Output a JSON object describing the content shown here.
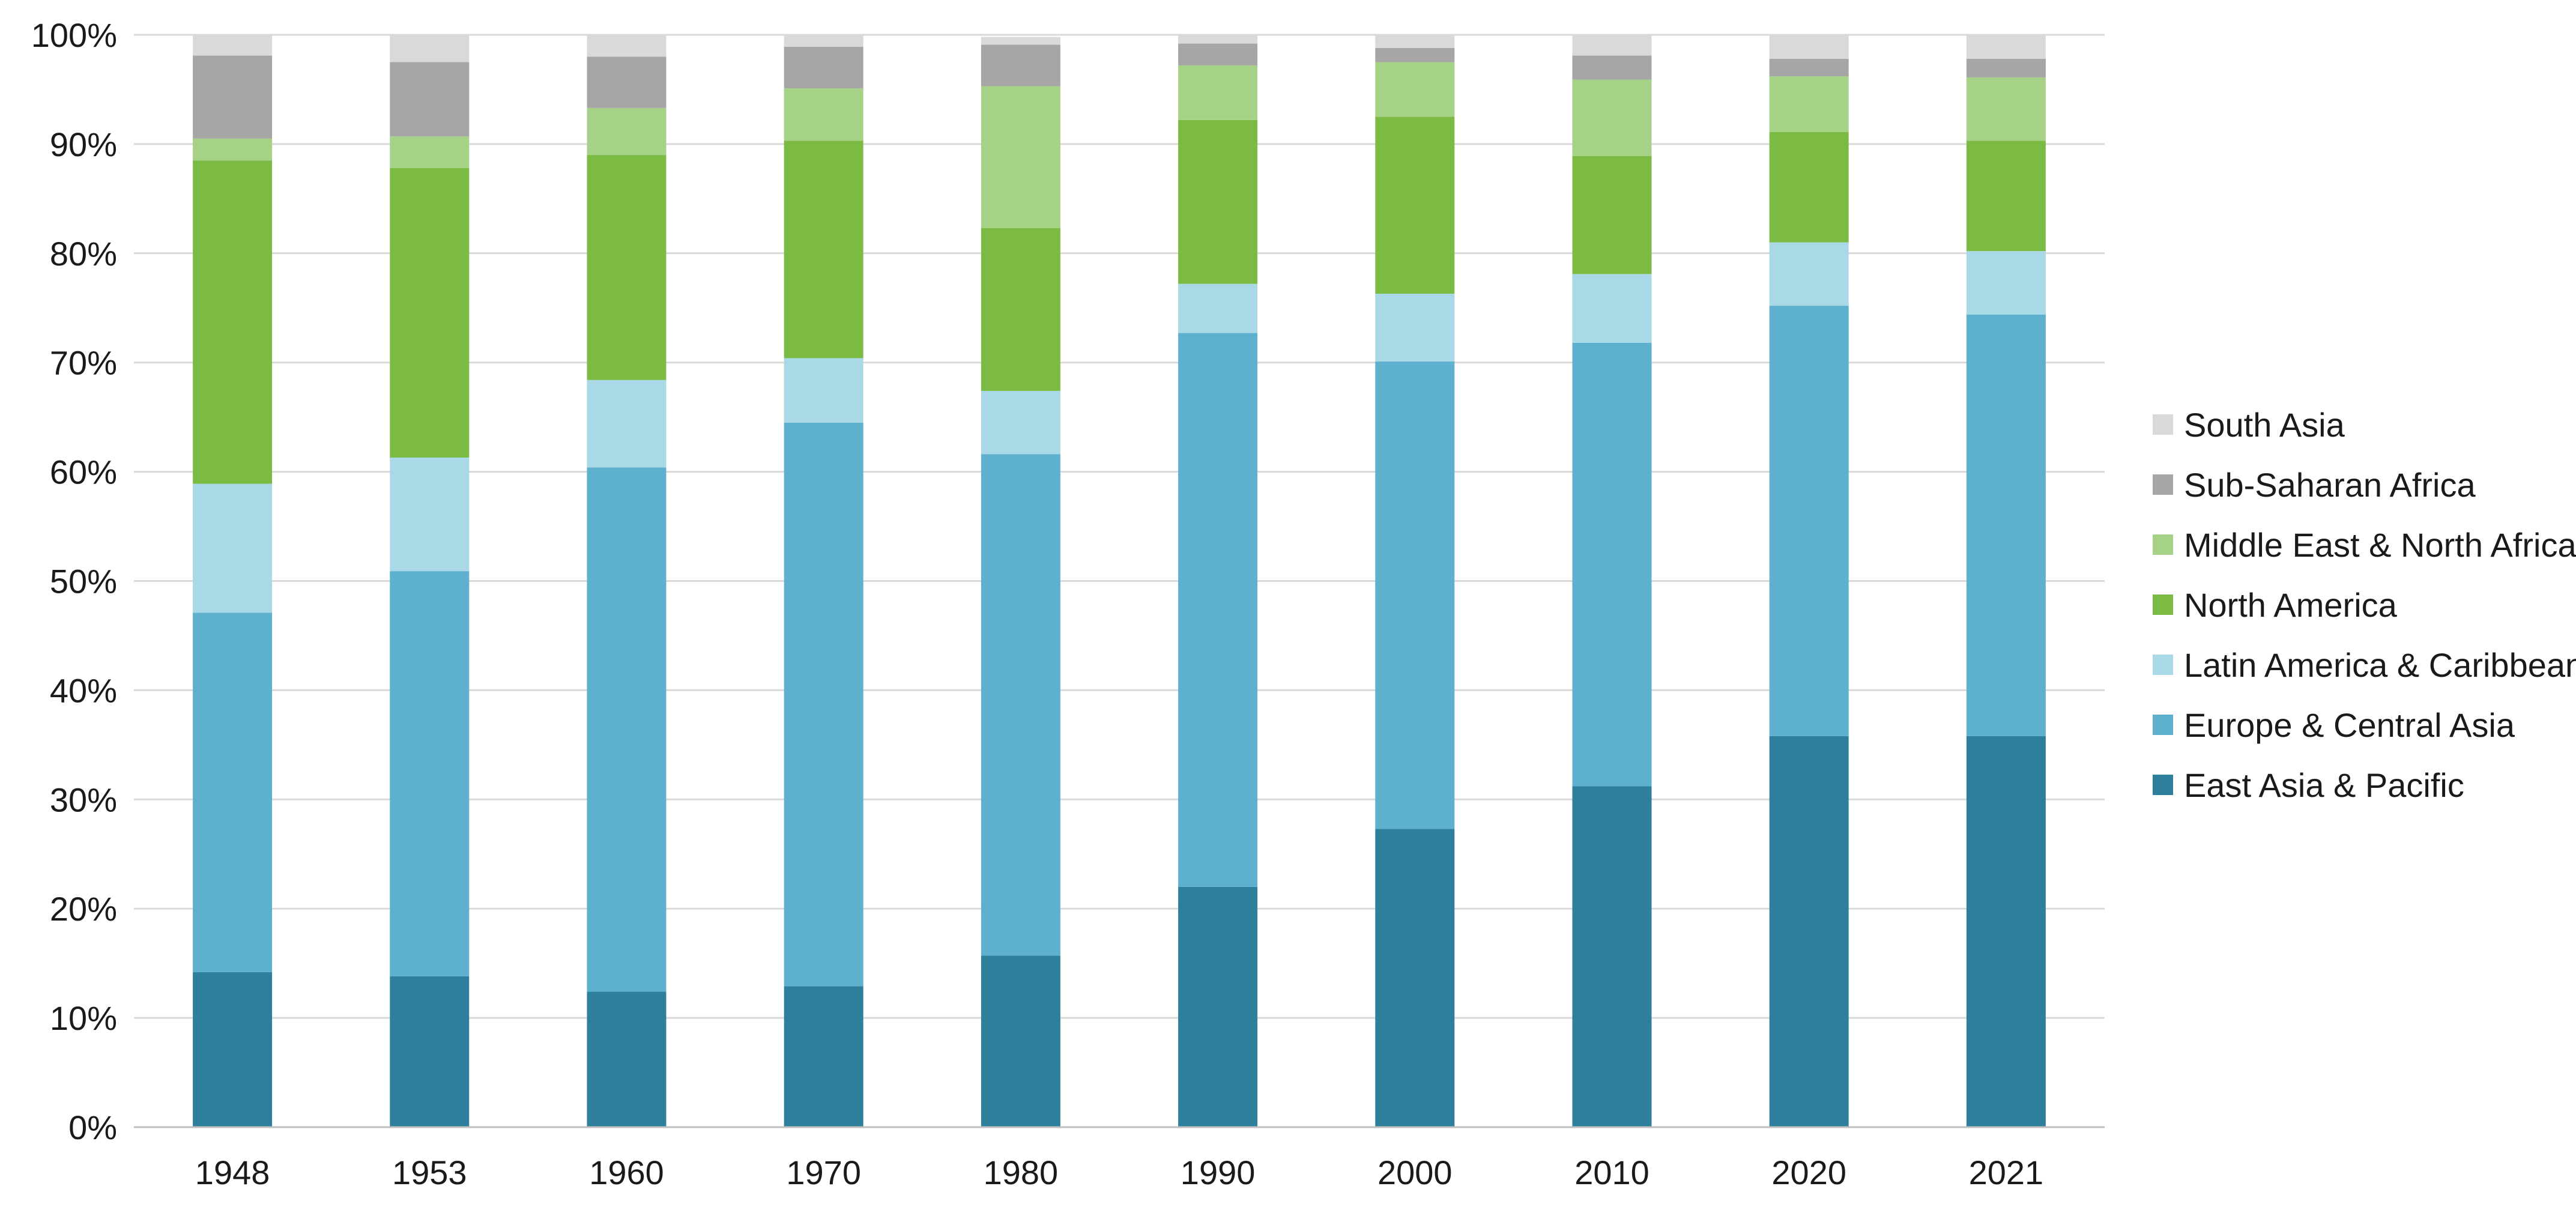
{
  "chart_data": {
    "type": "bar",
    "stacked": true,
    "categories": [
      "1948",
      "1953",
      "1960",
      "1970",
      "1980",
      "1990",
      "2000",
      "2010",
      "2020",
      "2021"
    ],
    "series": [
      {
        "name": "East Asia & Pacific",
        "color": "#2e7f9b",
        "values": [
          14.2,
          13.8,
          12.4,
          12.9,
          15.7,
          22.0,
          27.3,
          31.2,
          35.8,
          35.8
        ]
      },
      {
        "name": "Europe & Central Asia",
        "color": "#5db1cf",
        "values": [
          32.9,
          37.1,
          48.0,
          51.6,
          45.9,
          50.7,
          42.8,
          40.6,
          39.4,
          38.6
        ]
      },
      {
        "name": "Latin America & Caribbean",
        "color": "#a9d8e6",
        "values": [
          11.8,
          10.4,
          8.0,
          5.9,
          5.8,
          4.5,
          6.2,
          6.3,
          5.8,
          5.8
        ]
      },
      {
        "name": "North America",
        "color": "#7bbb44",
        "values": [
          29.6,
          26.5,
          20.6,
          19.9,
          14.9,
          15.0,
          16.2,
          10.8,
          10.1,
          10.1
        ]
      },
      {
        "name": "Middle East & North Africa",
        "color": "#a5d286",
        "values": [
          2.0,
          2.9,
          4.3,
          4.8,
          13.0,
          5.0,
          5.0,
          7.0,
          5.1,
          5.8
        ]
      },
      {
        "name": "Sub-Saharan Africa",
        "color": "#a6a6a6",
        "values": [
          7.6,
          6.8,
          4.7,
          3.8,
          3.8,
          2.0,
          1.3,
          2.2,
          1.6,
          1.7
        ]
      },
      {
        "name": "South Asia",
        "color": "#d9d9d9",
        "values": [
          1.9,
          2.5,
          2.0,
          1.1,
          0.7,
          0.8,
          1.2,
          1.9,
          2.2,
          2.2
        ]
      }
    ],
    "ylim": [
      0,
      100
    ],
    "yticks": [
      "0%",
      "10%",
      "20%",
      "30%",
      "40%",
      "50%",
      "60%",
      "70%",
      "80%",
      "90%",
      "100%"
    ],
    "grid": true,
    "legend_placement": "right",
    "title": "",
    "xlabel": "",
    "ylabel": ""
  }
}
